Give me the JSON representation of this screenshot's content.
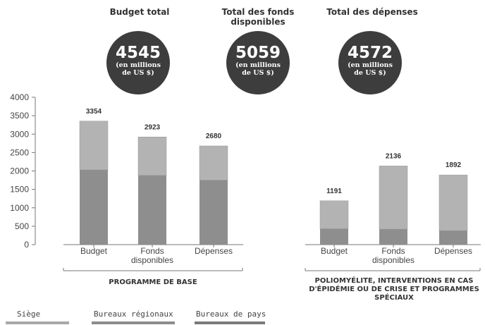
{
  "kpis": [
    {
      "title": "Budget total",
      "value": "4545",
      "unit": "(en millions de US $)"
    },
    {
      "title": "Total des fonds disponibles",
      "value": "5059",
      "unit": "(en millions de US $)"
    },
    {
      "title": "Total des dépenses",
      "value": "4572",
      "unit": "(en millions de US $)"
    }
  ],
  "groups": [
    {
      "label": "PROGRAMME DE BASE"
    },
    {
      "label": "POLIOMYÉLITE, INTERVENTIONS EN CAS D'ÉPIDÉMIE OU DE CRISE ET PROGRAMMES SPÉCIAUX"
    }
  ],
  "legend": [
    {
      "label": "Siège",
      "color": "#a8a8a8"
    },
    {
      "label": "Bureaux régionaux",
      "color": "#8c8c8c"
    },
    {
      "label": "Bureaux de pays",
      "color": "#7a7a7a"
    }
  ],
  "chart_data": {
    "type": "bar",
    "stacked": true,
    "ylim": [
      0,
      4000
    ],
    "yticks": [
      0,
      500,
      1000,
      1500,
      2000,
      2500,
      3000,
      3500,
      4000
    ],
    "grid": false,
    "bars": [
      {
        "group": 0,
        "category": "Budget",
        "total": 3354,
        "lower": 2030
      },
      {
        "group": 0,
        "category": "Fonds disponibles",
        "total": 2923,
        "lower": 1880
      },
      {
        "group": 0,
        "category": "Dépenses",
        "total": 2680,
        "lower": 1750
      },
      {
        "group": 1,
        "category": "Budget",
        "total": 1191,
        "lower": 430
      },
      {
        "group": 1,
        "category": "Fonds disponibles",
        "total": 2136,
        "lower": 420
      },
      {
        "group": 1,
        "category": "Dépenses",
        "total": 1892,
        "lower": 380
      }
    ],
    "colors": {
      "upper": "#b3b3b3",
      "lower": "#8e8e8e",
      "axis": "#777777"
    }
  }
}
